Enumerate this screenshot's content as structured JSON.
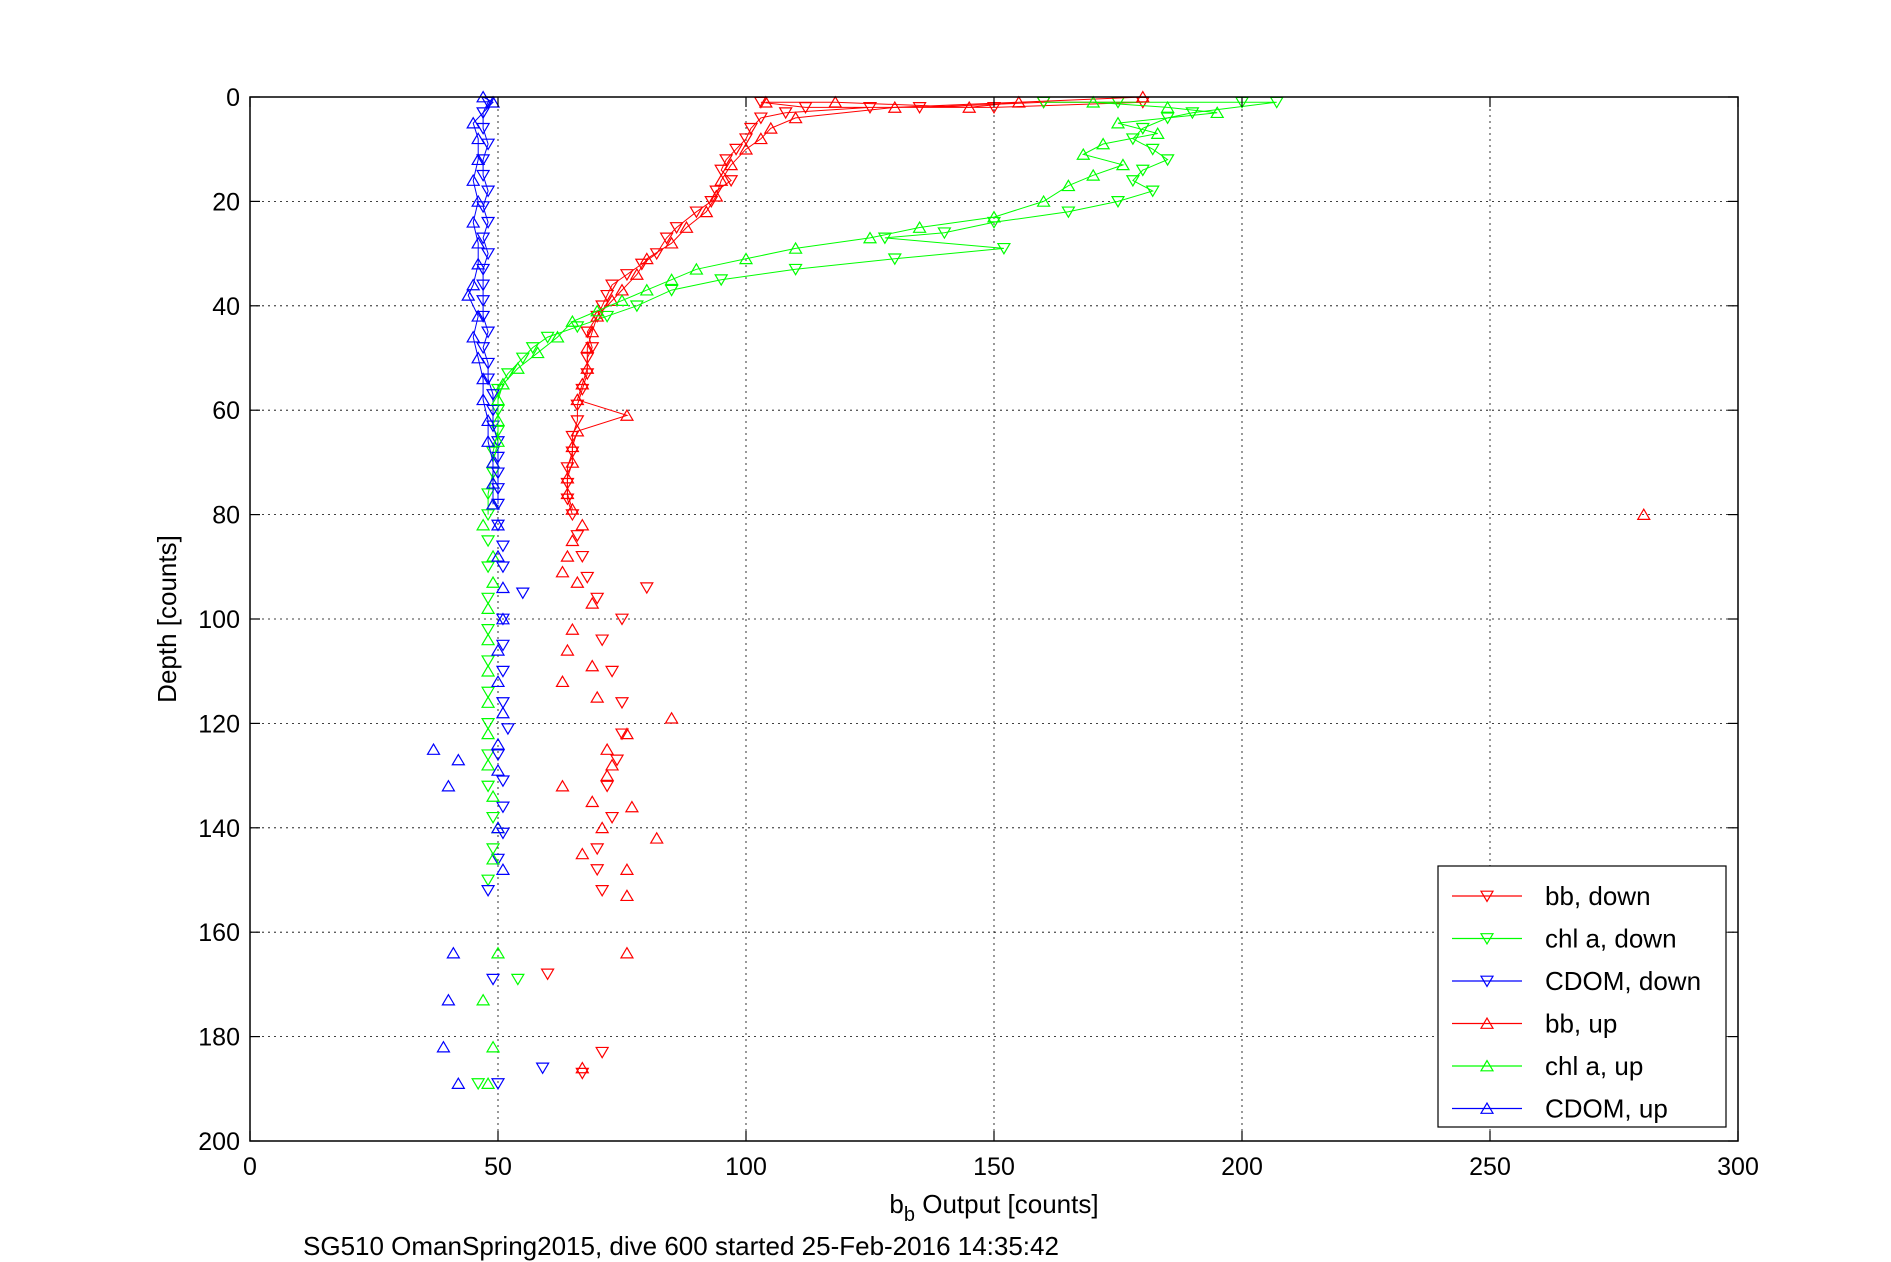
{
  "chart_data": {
    "type": "scatter",
    "xlabel": "b",
    "xlabel_sub": "b",
    "xlabel_rest": " Output [counts]",
    "ylabel": "Depth [counts]",
    "subtitle": "SG510 OmanSpring2015, dive 600 started 25-Feb-2016 14:35:42",
    "xlim": [
      0,
      300
    ],
    "ylim": [
      0,
      200
    ],
    "y_reversed": true,
    "grid": true,
    "legend_position": "bottom-right",
    "x_ticks": [
      "0",
      "50",
      "100",
      "150",
      "200",
      "250",
      "300"
    ],
    "y_ticks": [
      "0",
      "20",
      "40",
      "60",
      "80",
      "100",
      "120",
      "140",
      "160",
      "180",
      "200"
    ],
    "series": [
      {
        "name": "bb, down",
        "color": "#ff0000",
        "marker": "triangle-down",
        "points": [
          [
            103,
            1
          ],
          [
            112,
            2
          ],
          [
            135,
            2
          ],
          [
            160,
            1
          ],
          [
            180,
            1
          ],
          [
            150,
            2
          ],
          [
            125,
            2
          ],
          [
            108,
            3
          ],
          [
            103,
            4
          ],
          [
            101,
            6
          ],
          [
            100,
            8
          ],
          [
            98,
            10
          ],
          [
            96,
            12
          ],
          [
            95,
            14
          ],
          [
            97,
            16
          ],
          [
            94,
            18
          ],
          [
            93,
            20
          ],
          [
            90,
            22
          ],
          [
            86,
            25
          ],
          [
            84,
            27
          ],
          [
            82,
            30
          ],
          [
            79,
            32
          ],
          [
            76,
            34
          ],
          [
            73,
            36
          ],
          [
            72,
            38
          ],
          [
            71,
            40
          ],
          [
            70,
            42
          ],
          [
            68,
            45
          ],
          [
            69,
            48
          ],
          [
            68,
            50
          ],
          [
            68,
            53
          ],
          [
            67,
            56
          ],
          [
            66,
            59
          ],
          [
            66,
            62
          ],
          [
            65,
            65
          ],
          [
            65,
            68
          ],
          [
            64,
            71
          ],
          [
            64,
            74
          ],
          [
            64,
            77
          ],
          [
            65,
            80
          ],
          [
            66,
            84
          ],
          [
            67,
            88
          ],
          [
            68,
            92
          ],
          [
            70,
            96
          ],
          [
            80,
            94
          ],
          [
            75,
            100
          ],
          [
            71,
            104
          ],
          [
            73,
            110
          ],
          [
            75,
            116
          ],
          [
            75,
            122
          ],
          [
            74,
            127
          ],
          [
            72,
            132
          ],
          [
            73,
            138
          ],
          [
            70,
            144
          ],
          [
            70,
            148
          ],
          [
            71,
            152
          ],
          [
            60,
            168
          ],
          [
            67,
            187
          ],
          [
            71,
            183
          ]
        ]
      },
      {
        "name": "chl a, down",
        "color": "#00ff00",
        "marker": "triangle-down",
        "points": [
          [
            160,
            1
          ],
          [
            175,
            1
          ],
          [
            200,
            1
          ],
          [
            207,
            1
          ],
          [
            190,
            3
          ],
          [
            185,
            4
          ],
          [
            180,
            6
          ],
          [
            178,
            8
          ],
          [
            182,
            10
          ],
          [
            185,
            12
          ],
          [
            180,
            14
          ],
          [
            178,
            16
          ],
          [
            182,
            18
          ],
          [
            175,
            20
          ],
          [
            165,
            22
          ],
          [
            150,
            24
          ],
          [
            140,
            26
          ],
          [
            128,
            27
          ],
          [
            152,
            29
          ],
          [
            130,
            31
          ],
          [
            110,
            33
          ],
          [
            95,
            35
          ],
          [
            85,
            37
          ],
          [
            78,
            40
          ],
          [
            72,
            42
          ],
          [
            66,
            44
          ],
          [
            60,
            46
          ],
          [
            57,
            48
          ],
          [
            55,
            50
          ],
          [
            52,
            53
          ],
          [
            50,
            56
          ],
          [
            50,
            60
          ],
          [
            50,
            64
          ],
          [
            49,
            68
          ],
          [
            49,
            72
          ],
          [
            48,
            76
          ],
          [
            48,
            80
          ],
          [
            48,
            85
          ],
          [
            48,
            90
          ],
          [
            48,
            96
          ],
          [
            48,
            102
          ],
          [
            48,
            108
          ],
          [
            48,
            114
          ],
          [
            48,
            120
          ],
          [
            48,
            126
          ],
          [
            48,
            132
          ],
          [
            49,
            138
          ],
          [
            49,
            144
          ],
          [
            48,
            150
          ],
          [
            54,
            169
          ],
          [
            46,
            189
          ]
        ]
      },
      {
        "name": "CDOM, down",
        "color": "#0000ff",
        "marker": "triangle-down",
        "points": [
          [
            48,
            1
          ],
          [
            47,
            3
          ],
          [
            47,
            6
          ],
          [
            48,
            9
          ],
          [
            47,
            12
          ],
          [
            47,
            15
          ],
          [
            48,
            18
          ],
          [
            47,
            21
          ],
          [
            48,
            24
          ],
          [
            47,
            27
          ],
          [
            48,
            30
          ],
          [
            47,
            33
          ],
          [
            47,
            36
          ],
          [
            47,
            39
          ],
          [
            47,
            42
          ],
          [
            48,
            45
          ],
          [
            47,
            48
          ],
          [
            48,
            51
          ],
          [
            48,
            54
          ],
          [
            49,
            57
          ],
          [
            49,
            60
          ],
          [
            49,
            63
          ],
          [
            50,
            66
          ],
          [
            50,
            69
          ],
          [
            50,
            72
          ],
          [
            50,
            75
          ],
          [
            50,
            78
          ],
          [
            50,
            82
          ],
          [
            51,
            86
          ],
          [
            51,
            90
          ],
          [
            55,
            95
          ],
          [
            51,
            100
          ],
          [
            51,
            105
          ],
          [
            51,
            110
          ],
          [
            51,
            116
          ],
          [
            52,
            121
          ],
          [
            50,
            126
          ],
          [
            51,
            131
          ],
          [
            51,
            136
          ],
          [
            51,
            141
          ],
          [
            50,
            146
          ],
          [
            48,
            152
          ],
          [
            49,
            169
          ],
          [
            59,
            186
          ],
          [
            50,
            189
          ]
        ]
      },
      {
        "name": "bb, up",
        "color": "#ff0000",
        "marker": "triangle-up",
        "points": [
          [
            104,
            1
          ],
          [
            118,
            1
          ],
          [
            145,
            2
          ],
          [
            155,
            1
          ],
          [
            180,
            0
          ],
          [
            130,
            2
          ],
          [
            110,
            4
          ],
          [
            105,
            6
          ],
          [
            103,
            8
          ],
          [
            100,
            10
          ],
          [
            97,
            13
          ],
          [
            95,
            16
          ],
          [
            94,
            19
          ],
          [
            92,
            22
          ],
          [
            88,
            25
          ],
          [
            85,
            28
          ],
          [
            80,
            31
          ],
          [
            78,
            34
          ],
          [
            75,
            37
          ],
          [
            73,
            39
          ],
          [
            70,
            42
          ],
          [
            69,
            45
          ],
          [
            68,
            48
          ],
          [
            68,
            52
          ],
          [
            67,
            55
          ],
          [
            66,
            58
          ],
          [
            76,
            61
          ],
          [
            66,
            64
          ],
          [
            65,
            67
          ],
          [
            65,
            70
          ],
          [
            64,
            73
          ],
          [
            64,
            76
          ],
          [
            65,
            79
          ],
          [
            67,
            82
          ],
          [
            65,
            85
          ],
          [
            64,
            88
          ],
          [
            63,
            91
          ],
          [
            66,
            93
          ],
          [
            69,
            97
          ],
          [
            65,
            102
          ],
          [
            64,
            106
          ],
          [
            69,
            109
          ],
          [
            63,
            112
          ],
          [
            70,
            115
          ],
          [
            85,
            119
          ],
          [
            76,
            122
          ],
          [
            72,
            125
          ],
          [
            73,
            128
          ],
          [
            72,
            130
          ],
          [
            63,
            132
          ],
          [
            69,
            135
          ],
          [
            77,
            136
          ],
          [
            71,
            140
          ],
          [
            82,
            142
          ],
          [
            67,
            145
          ],
          [
            76,
            148
          ],
          [
            76,
            153
          ],
          [
            76,
            164
          ],
          [
            67,
            186
          ],
          [
            281,
            80
          ]
        ]
      },
      {
        "name": "chl a, up",
        "color": "#00ff00",
        "marker": "triangle-up",
        "points": [
          [
            170,
            1
          ],
          [
            185,
            2
          ],
          [
            195,
            3
          ],
          [
            175,
            5
          ],
          [
            183,
            7
          ],
          [
            172,
            9
          ],
          [
            168,
            11
          ],
          [
            176,
            13
          ],
          [
            170,
            15
          ],
          [
            165,
            17
          ],
          [
            160,
            20
          ],
          [
            150,
            23
          ],
          [
            135,
            25
          ],
          [
            125,
            27
          ],
          [
            110,
            29
          ],
          [
            100,
            31
          ],
          [
            90,
            33
          ],
          [
            85,
            35
          ],
          [
            80,
            37
          ],
          [
            75,
            39
          ],
          [
            70,
            41
          ],
          [
            65,
            43
          ],
          [
            62,
            46
          ],
          [
            58,
            49
          ],
          [
            54,
            52
          ],
          [
            51,
            55
          ],
          [
            50,
            58
          ],
          [
            50,
            62
          ],
          [
            50,
            66
          ],
          [
            49,
            70
          ],
          [
            49,
            74
          ],
          [
            49,
            78
          ],
          [
            47,
            82
          ],
          [
            49,
            88
          ],
          [
            49,
            93
          ],
          [
            48,
            98
          ],
          [
            48,
            104
          ],
          [
            48,
            110
          ],
          [
            48,
            116
          ],
          [
            48,
            122
          ],
          [
            48,
            128
          ],
          [
            49,
            134
          ],
          [
            50,
            140
          ],
          [
            49,
            146
          ],
          [
            50,
            164
          ],
          [
            47,
            173
          ],
          [
            49,
            182
          ],
          [
            48,
            189
          ]
        ]
      },
      {
        "name": "CDOM, up",
        "color": "#0000ff",
        "marker": "triangle-up",
        "points": [
          [
            47,
            0
          ],
          [
            49,
            1
          ],
          [
            45,
            5
          ],
          [
            46,
            8
          ],
          [
            46,
            12
          ],
          [
            45,
            16
          ],
          [
            46,
            20
          ],
          [
            45,
            24
          ],
          [
            46,
            28
          ],
          [
            46,
            32
          ],
          [
            45,
            36
          ],
          [
            44,
            38
          ],
          [
            46,
            42
          ],
          [
            45,
            46
          ],
          [
            46,
            50
          ],
          [
            47,
            54
          ],
          [
            47,
            58
          ],
          [
            48,
            62
          ],
          [
            48,
            66
          ],
          [
            49,
            70
          ],
          [
            49,
            74
          ],
          [
            49,
            78
          ],
          [
            50,
            82
          ],
          [
            50,
            88
          ],
          [
            51,
            94
          ],
          [
            51,
            100
          ],
          [
            50,
            106
          ],
          [
            50,
            112
          ],
          [
            51,
            118
          ],
          [
            50,
            124
          ],
          [
            37,
            125
          ],
          [
            42,
            127
          ],
          [
            40,
            132
          ],
          [
            50,
            129
          ],
          [
            50,
            140
          ],
          [
            51,
            148
          ],
          [
            41,
            164
          ],
          [
            40,
            173
          ],
          [
            39,
            182
          ],
          [
            42,
            189
          ]
        ]
      }
    ]
  }
}
